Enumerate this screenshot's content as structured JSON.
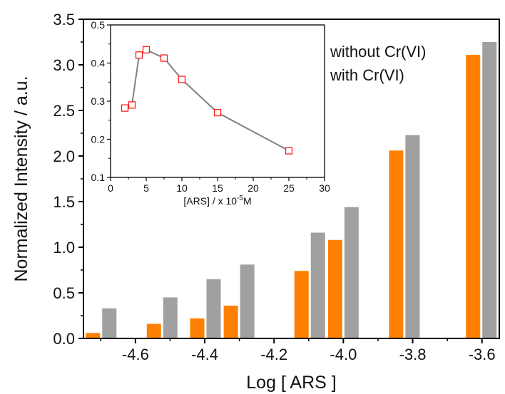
{
  "chart_data": [
    {
      "type": "bar",
      "xlabel": "Log [ ARS ]",
      "ylabel": "Normalized Intensity / a.u.",
      "xlim": [
        -4.75,
        -3.55
      ],
      "ylim": [
        0,
        3.5
      ],
      "x_ticks": [
        -4.6,
        -4.4,
        -4.2,
        -4.0,
        -3.8,
        -3.6
      ],
      "x_tick_labels": [
        "-4.6",
        "-4.4",
        "-4.2",
        "-4.0",
        "-3.8",
        "-3.6"
      ],
      "y_ticks": [
        0,
        0.5,
        1.0,
        1.5,
        2.0,
        2.5,
        3.0,
        3.5
      ],
      "y_tick_labels": [
        "0.0",
        "0.5",
        "1.0",
        "1.5",
        "2.0",
        "2.5",
        "3.0",
        "3.5"
      ],
      "legend_position": "top-right",
      "series": [
        {
          "name": "without Cr(VI)",
          "color": "#a0a0a0",
          "x": [
            -4.699,
            -4.523,
            -4.398,
            -4.301,
            -4.097,
            -4.0,
            -3.824,
            -3.602
          ],
          "values": [
            0.33,
            0.45,
            0.65,
            0.81,
            1.16,
            1.44,
            2.23,
            3.25
          ]
        },
        {
          "name": "with Cr(VI)",
          "color": "#ff8000",
          "x": [
            -4.699,
            -4.523,
            -4.398,
            -4.301,
            -4.097,
            -4.0,
            -3.824,
            -3.602
          ],
          "values": [
            0.06,
            0.16,
            0.22,
            0.36,
            0.74,
            1.08,
            2.06,
            3.11
          ]
        }
      ]
    },
    {
      "type": "line",
      "xlabel_prefix": "[ARS] / x 10",
      "xlabel_exponent": "-5",
      "xlabel_suffix": "M",
      "ylabel": "",
      "xlim": [
        0,
        30
      ],
      "ylim": [
        0.1,
        0.5
      ],
      "x_ticks": [
        0,
        5,
        10,
        15,
        20,
        25,
        30
      ],
      "x_tick_labels": [
        "0",
        "5",
        "10",
        "15",
        "20",
        "25",
        "30"
      ],
      "y_ticks": [
        0.1,
        0.2,
        0.3,
        0.4,
        0.5
      ],
      "y_tick_labels": [
        "0.1",
        "0.2",
        "0.3",
        "0.4",
        "0.5"
      ],
      "line_color": "#808080",
      "marker_color": "#ff1a1a",
      "x": [
        2,
        3,
        4,
        5,
        7.5,
        10,
        15,
        25
      ],
      "y": [
        0.282,
        0.29,
        0.421,
        0.435,
        0.413,
        0.357,
        0.27,
        0.17
      ]
    }
  ]
}
